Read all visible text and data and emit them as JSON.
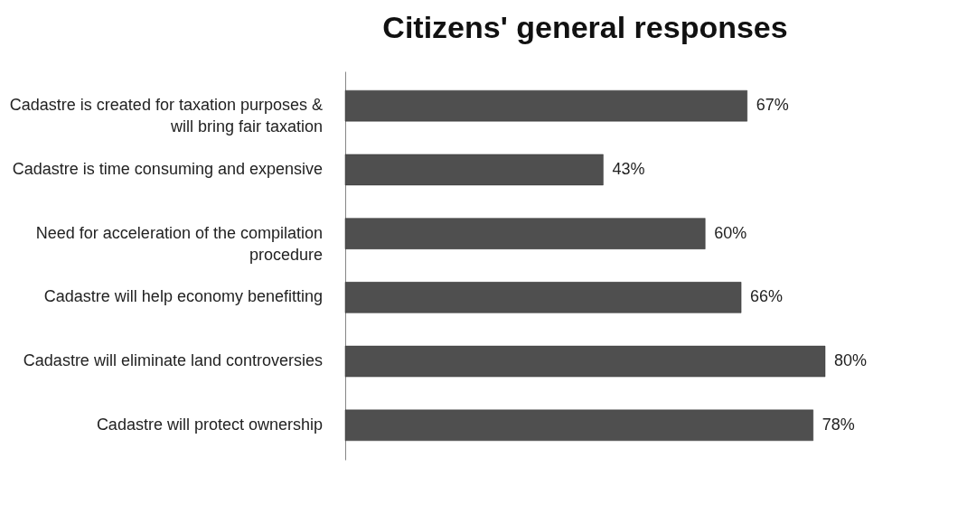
{
  "chart_data": {
    "type": "bar",
    "orientation": "horizontal",
    "title": "Citizens' general responses",
    "categories": [
      "Cadastre is created for taxation purposes & will bring fair taxation",
      "Cadastre is time consuming and expensive",
      "Need for acceleration of the compilation procedure",
      "Cadastre will help economy benefitting",
      "Cadastre will eliminate land controversies",
      "Cadastre will protect ownership"
    ],
    "values": [
      67,
      43,
      60,
      66,
      80,
      78
    ],
    "value_labels": [
      "67%",
      "43%",
      "60%",
      "66%",
      "80%",
      "78%"
    ],
    "color": "#4f4f4f",
    "grid": false
  }
}
